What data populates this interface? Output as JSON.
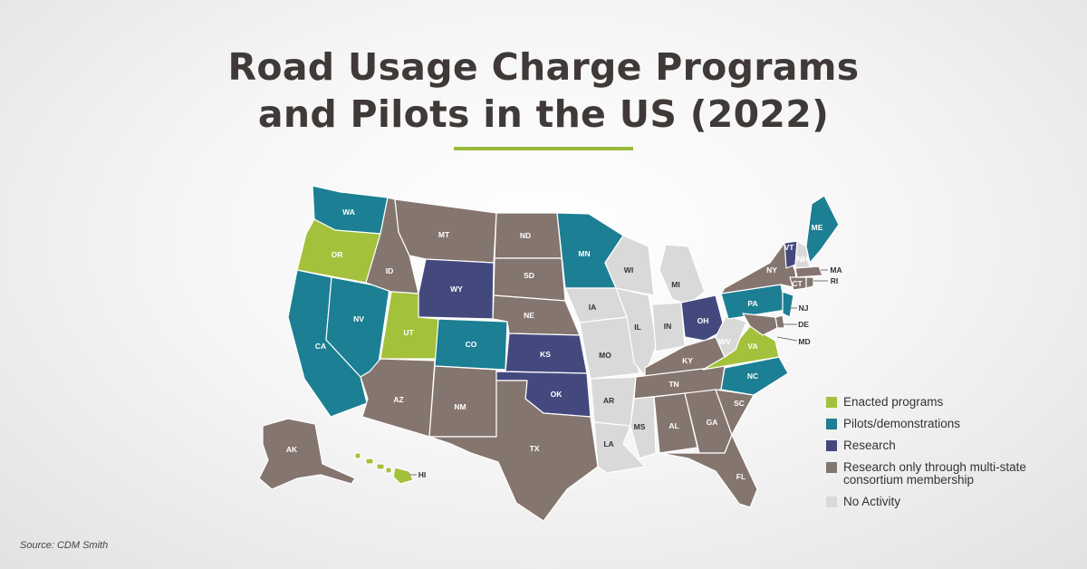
{
  "title": {
    "line1": "Road Usage Charge Programs",
    "line2": "and Pilots in the US (2022)"
  },
  "colors": {
    "enacted": "#a3c13a",
    "pilots": "#1c7f93",
    "research": "#44497d",
    "consortium": "#85756f",
    "none": "#d9d9d9",
    "title": "#3f3a38",
    "accent_rule": "#99b93c"
  },
  "legend": [
    {
      "key": "enacted",
      "label": "Enacted programs"
    },
    {
      "key": "pilots",
      "label": "Pilots/demonstrations"
    },
    {
      "key": "research",
      "label": "Research"
    },
    {
      "key": "consortium",
      "label": "Research only through multi-state consortium membership"
    },
    {
      "key": "none",
      "label": "No Activity"
    }
  ],
  "states": {
    "WA": "pilots",
    "OR": "enacted",
    "CA": "pilots",
    "NV": "pilots",
    "ID": "consortium",
    "MT": "consortium",
    "WY": "research",
    "UT": "enacted",
    "CO": "pilots",
    "AZ": "consortium",
    "NM": "consortium",
    "ND": "consortium",
    "SD": "consortium",
    "NE": "consortium",
    "KS": "research",
    "OK": "research",
    "TX": "consortium",
    "MN": "pilots",
    "IA": "none",
    "MO": "none",
    "AR": "none",
    "LA": "none",
    "WI": "none",
    "IL": "none",
    "MI": "none",
    "IN": "none",
    "OH": "research",
    "KY": "consortium",
    "TN": "consortium",
    "MS": "none",
    "AL": "consortium",
    "GA": "consortium",
    "FL": "consortium",
    "SC": "consortium",
    "NC": "pilots",
    "VA": "enacted",
    "WV": "none",
    "PA": "pilots",
    "NY": "consortium",
    "VT": "research",
    "NH": "none",
    "ME": "pilots",
    "MA": "consortium",
    "RI": "consortium",
    "CT": "consortium",
    "NJ": "pilots",
    "DE": "consortium",
    "MD": "consortium",
    "AK": "consortium",
    "HI": "enacted"
  },
  "source": "Source: CDM Smith"
}
